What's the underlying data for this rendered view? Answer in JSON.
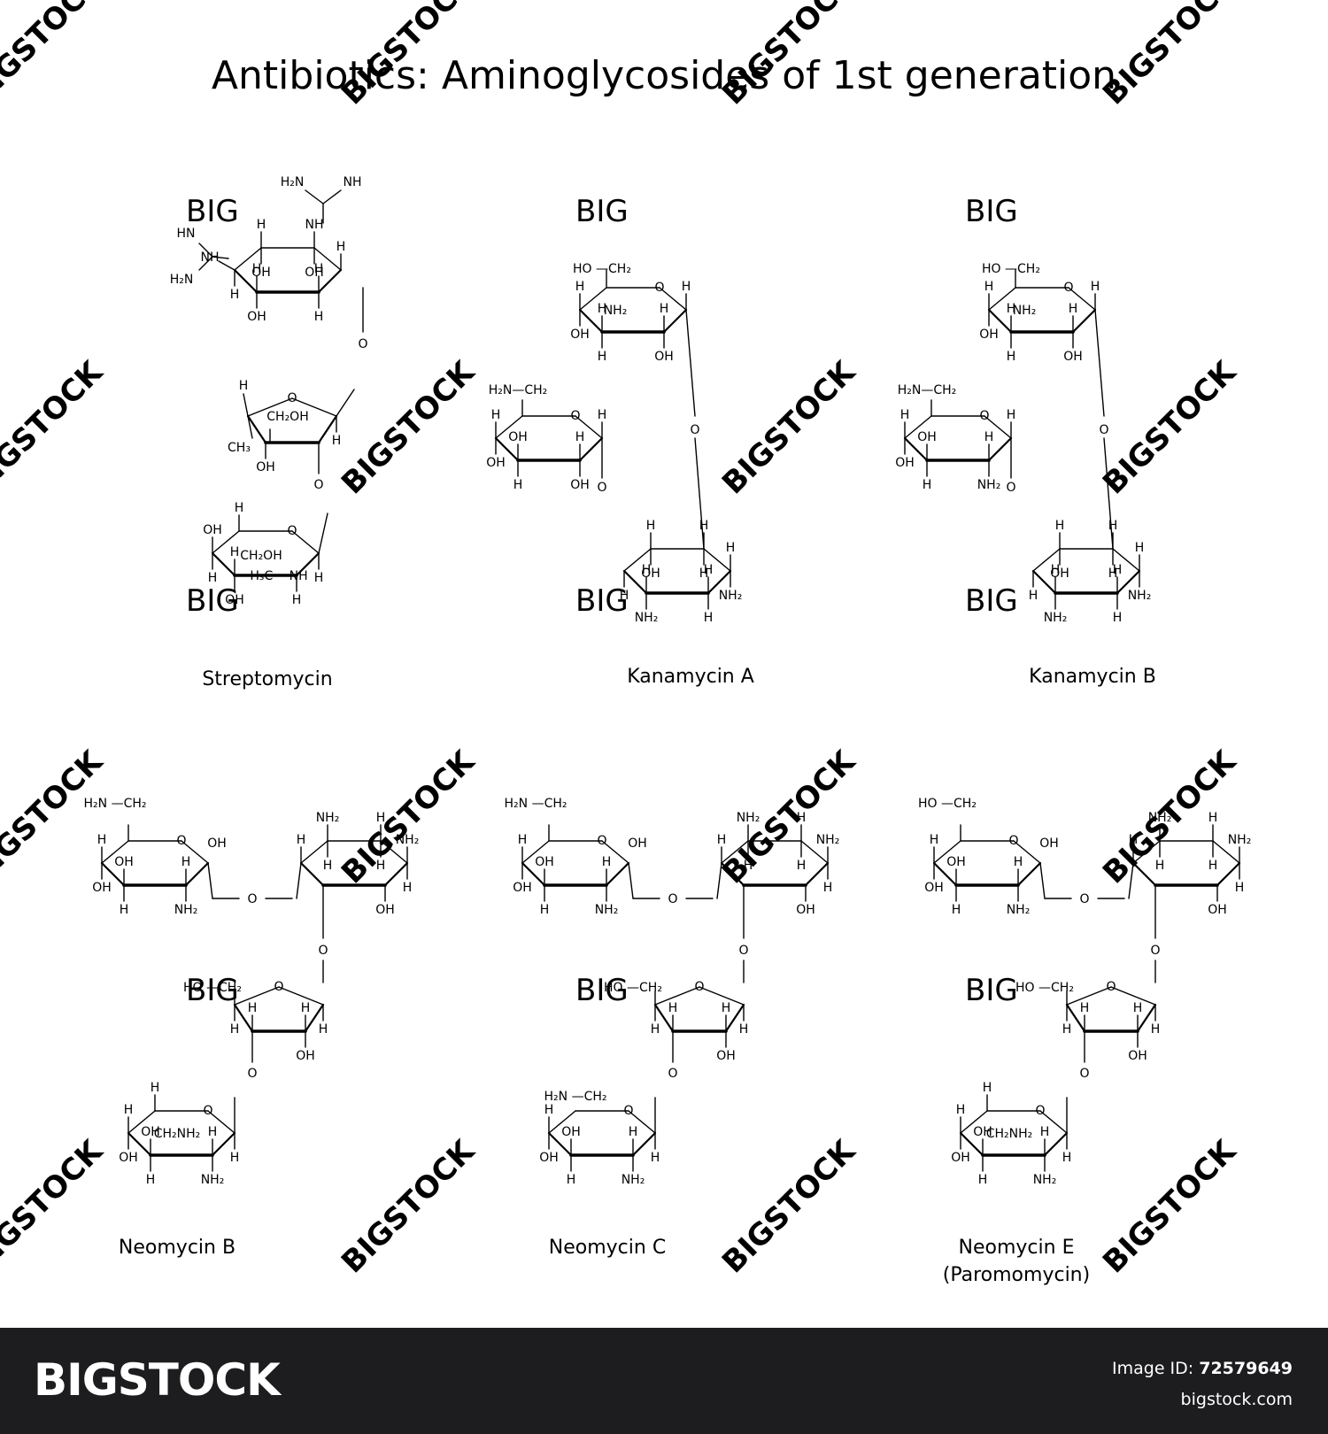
{
  "title": "Antibiotics: Aminoglycosides of 1st generation",
  "compounds": [
    {
      "name": "Streptomycin"
    },
    {
      "name": "Kanamycin A"
    },
    {
      "name": "Kanamycin B"
    },
    {
      "name": "Neomycin B"
    },
    {
      "name": "Neomycin C"
    },
    {
      "name": "Neomycin E",
      "name2": "(Paromomycin)"
    }
  ],
  "watermarks": {
    "big": "BIG",
    "stock": "BIGSTOCK"
  },
  "footer": {
    "brand": "BIGSTOCK",
    "image_id_label": "Image ID:",
    "image_id": "72579649",
    "site": "bigstock.com"
  },
  "colors": {
    "footer_bg": "#1d1d1f",
    "watermark": "#d9d9d9"
  }
}
